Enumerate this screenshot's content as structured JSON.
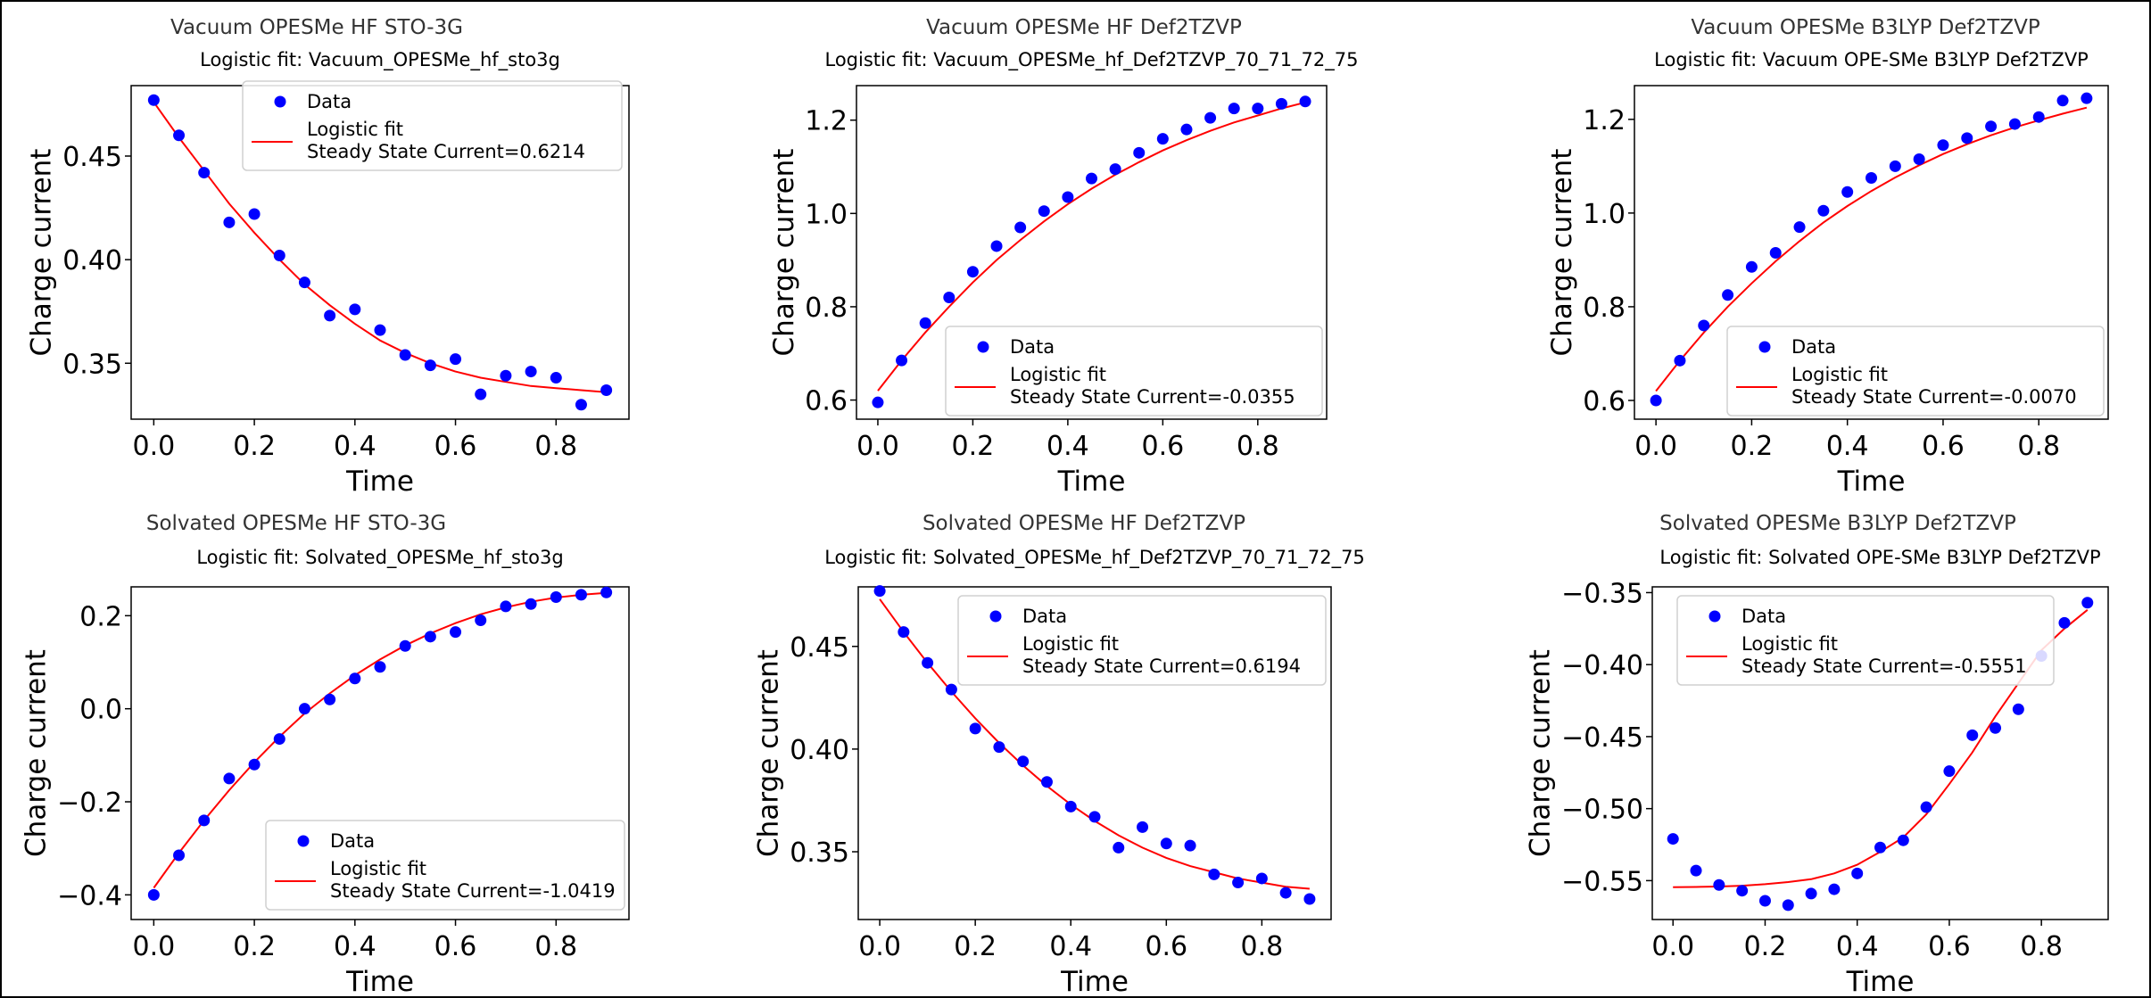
{
  "chart_data": [
    {
      "type": "scatter",
      "suptitle": "Vacuum OPESMe HF STO-3G",
      "title": "Logistic fit: Vacuum_OPESMe_hf_sto3g",
      "xlabel": "Time",
      "ylabel": "Charge current",
      "xlim": [
        -0.045,
        0.945
      ],
      "ylim": [
        0.323,
        0.484
      ],
      "xticks": [
        "0.0",
        "0.2",
        "0.4",
        "0.6",
        "0.8"
      ],
      "yticks": [
        "0.35",
        "0.40",
        "0.45"
      ],
      "x": [
        0,
        0.05,
        0.1,
        0.15,
        0.2,
        0.25,
        0.3,
        0.35,
        0.4,
        0.45,
        0.5,
        0.55,
        0.6,
        0.65,
        0.7,
        0.75,
        0.8,
        0.85,
        0.9
      ],
      "series": [
        {
          "name": "Data",
          "kind": "scatter",
          "color": "#0000ff",
          "values": [
            0.477,
            0.46,
            0.442,
            0.418,
            0.422,
            0.402,
            0.389,
            0.373,
            0.376,
            0.366,
            0.354,
            0.349,
            0.352,
            0.335,
            0.344,
            0.346,
            0.343,
            0.33,
            0.337
          ]
        },
        {
          "name": "Logistic fit\nSteady State Current=0.6214",
          "line1": "Logistic fit",
          "line2": "Steady State Current=0.6214",
          "kind": "line",
          "color": "#ff0000",
          "values": [
            0.476,
            0.459,
            0.443,
            0.427,
            0.413,
            0.4,
            0.388,
            0.378,
            0.369,
            0.361,
            0.355,
            0.35,
            0.346,
            0.343,
            0.341,
            0.339,
            0.338,
            0.337,
            0.336
          ]
        }
      ],
      "legend": "upper-right"
    },
    {
      "type": "scatter",
      "suptitle": "Vacuum OPESMe HF Def2TZVP",
      "title": "Logistic fit: Vacuum_OPESMe_hf_Def2TZVP_70_71_72_75",
      "xlabel": "Time",
      "ylabel": "Charge current",
      "xlim": [
        -0.045,
        0.945
      ],
      "ylim": [
        0.559,
        1.274
      ],
      "xticks": [
        "0.0",
        "0.2",
        "0.4",
        "0.6",
        "0.8"
      ],
      "yticks": [
        "0.6",
        "0.8",
        "1.0",
        "1.2"
      ],
      "x": [
        0,
        0.05,
        0.1,
        0.15,
        0.2,
        0.25,
        0.3,
        0.35,
        0.4,
        0.45,
        0.5,
        0.55,
        0.6,
        0.65,
        0.7,
        0.75,
        0.8,
        0.85,
        0.9
      ],
      "series": [
        {
          "name": "Data",
          "kind": "scatter",
          "color": "#0000ff",
          "values": [
            0.595,
            0.685,
            0.765,
            0.82,
            0.875,
            0.93,
            0.97,
            1.005,
            1.035,
            1.075,
            1.095,
            1.13,
            1.16,
            1.18,
            1.205,
            1.225,
            1.225,
            1.235,
            1.24
          ]
        },
        {
          "name": "Logistic fit\nSteady State Current=-0.0355",
          "line1": "Logistic fit",
          "line2": "Steady State Current=-0.0355",
          "kind": "line",
          "color": "#ff0000",
          "values": [
            0.62,
            0.685,
            0.745,
            0.8,
            0.852,
            0.9,
            0.943,
            0.983,
            1.02,
            1.053,
            1.083,
            1.11,
            1.135,
            1.157,
            1.177,
            1.195,
            1.21,
            1.225,
            1.238
          ]
        }
      ],
      "legend": "lower-right"
    },
    {
      "type": "scatter",
      "suptitle": "Vacuum OPESMe B3LYP Def2TZVP",
      "title": "Logistic fit: Vacuum OPE-SMe B3LYP Def2TZVP",
      "xlabel": "Time",
      "ylabel": "Charge current",
      "xlim": [
        -0.045,
        0.945
      ],
      "ylim": [
        0.56,
        1.272
      ],
      "xticks": [
        "0.0",
        "0.2",
        "0.4",
        "0.6",
        "0.8"
      ],
      "yticks": [
        "0.6",
        "0.8",
        "1.0",
        "1.2"
      ],
      "x": [
        0,
        0.05,
        0.1,
        0.15,
        0.2,
        0.25,
        0.3,
        0.35,
        0.4,
        0.45,
        0.5,
        0.55,
        0.6,
        0.65,
        0.7,
        0.75,
        0.8,
        0.85,
        0.9
      ],
      "series": [
        {
          "name": "Data",
          "kind": "scatter",
          "color": "#0000ff",
          "values": [
            0.6,
            0.685,
            0.76,
            0.825,
            0.885,
            0.915,
            0.97,
            1.005,
            1.045,
            1.075,
            1.1,
            1.115,
            1.145,
            1.16,
            1.185,
            1.19,
            1.205,
            1.24,
            1.245
          ]
        },
        {
          "name": "Logistic fit\nSteady State Current=-0.0070",
          "line1": "Logistic fit",
          "line2": "Steady State Current=-0.0070",
          "kind": "line",
          "color": "#ff0000",
          "values": [
            0.62,
            0.685,
            0.745,
            0.8,
            0.85,
            0.897,
            0.94,
            0.98,
            1.015,
            1.047,
            1.076,
            1.102,
            1.126,
            1.147,
            1.166,
            1.183,
            1.198,
            1.212,
            1.225
          ]
        }
      ],
      "legend": "lower-right"
    },
    {
      "type": "scatter",
      "suptitle": "Solvated OPESMe HF STO-3G",
      "title": "Logistic fit: Solvated_OPESMe_hf_sto3g",
      "xlabel": "Time",
      "ylabel": "Charge current",
      "xlim": [
        -0.045,
        0.945
      ],
      "ylim": [
        -0.453,
        0.262
      ],
      "xticks": [
        "0.0",
        "0.2",
        "0.4",
        "0.6",
        "0.8"
      ],
      "yticks": [
        "−0.4",
        "−0.2",
        "0.0",
        "0.2"
      ],
      "x": [
        0,
        0.05,
        0.1,
        0.15,
        0.2,
        0.25,
        0.3,
        0.35,
        0.4,
        0.45,
        0.5,
        0.55,
        0.6,
        0.65,
        0.7,
        0.75,
        0.8,
        0.85,
        0.9
      ],
      "series": [
        {
          "name": "Data",
          "kind": "scatter",
          "color": "#0000ff",
          "values": [
            -0.4,
            -0.315,
            -0.24,
            -0.15,
            -0.12,
            -0.065,
            0.0,
            0.02,
            0.065,
            0.09,
            0.135,
            0.155,
            0.165,
            0.19,
            0.22,
            0.225,
            0.24,
            0.245,
            0.25
          ]
        },
        {
          "name": "Logistic fit\nSteady State Current=-1.0419",
          "line1": "Logistic fit",
          "line2": "Steady State Current=-1.0419",
          "kind": "line",
          "color": "#ff0000",
          "values": [
            -0.385,
            -0.31,
            -0.24,
            -0.175,
            -0.115,
            -0.06,
            -0.01,
            0.033,
            0.072,
            0.106,
            0.136,
            0.162,
            0.184,
            0.203,
            0.218,
            0.23,
            0.239,
            0.245,
            0.249
          ]
        }
      ],
      "legend": "lower-right"
    },
    {
      "type": "scatter",
      "suptitle": "Solvated OPESMe HF Def2TZVP",
      "title": "Logistic fit: Solvated_OPESMe_hf_Def2TZVP_70_71_72_75",
      "xlabel": "Time",
      "ylabel": "Charge current",
      "xlim": [
        -0.045,
        0.945
      ],
      "ylim": [
        0.317,
        0.479
      ],
      "xticks": [
        "0.0",
        "0.2",
        "0.4",
        "0.6",
        "0.8"
      ],
      "yticks": [
        "0.35",
        "0.40",
        "0.45"
      ],
      "x": [
        0,
        0.05,
        0.1,
        0.15,
        0.2,
        0.25,
        0.3,
        0.35,
        0.4,
        0.45,
        0.5,
        0.55,
        0.6,
        0.65,
        0.7,
        0.75,
        0.8,
        0.85,
        0.9
      ],
      "series": [
        {
          "name": "Data",
          "kind": "scatter",
          "color": "#0000ff",
          "values": [
            0.477,
            0.457,
            0.442,
            0.429,
            0.41,
            0.401,
            0.394,
            0.384,
            0.372,
            0.367,
            0.352,
            0.362,
            0.354,
            0.353,
            0.339,
            0.335,
            0.337,
            0.33,
            0.327
          ]
        },
        {
          "name": "Logistic fit\nSteady State Current=0.6194",
          "line1": "Logistic fit",
          "line2": "Steady State Current=0.6194",
          "kind": "line",
          "color": "#ff0000",
          "values": [
            0.473,
            0.457,
            0.442,
            0.428,
            0.415,
            0.403,
            0.392,
            0.382,
            0.373,
            0.365,
            0.358,
            0.352,
            0.347,
            0.343,
            0.34,
            0.337,
            0.335,
            0.333,
            0.332
          ]
        }
      ],
      "legend": "upper-right"
    },
    {
      "type": "scatter",
      "suptitle": "Solvated OPESMe B3LYP Def2TZVP",
      "title": "Logistic fit: Solvated OPE-SMe B3LYP Def2TZVP",
      "xlabel": "Time",
      "ylabel": "Charge current",
      "xlim": [
        -0.045,
        0.945
      ],
      "ylim": [
        -0.577,
        -0.346
      ],
      "xticks": [
        "0.0",
        "0.2",
        "0.4",
        "0.6",
        "0.8"
      ],
      "yticks": [
        "−0.55",
        "−0.50",
        "−0.45",
        "−0.40",
        "−0.35"
      ],
      "x": [
        0,
        0.05,
        0.1,
        0.15,
        0.2,
        0.25,
        0.3,
        0.35,
        0.4,
        0.45,
        0.5,
        0.55,
        0.6,
        0.65,
        0.7,
        0.75,
        0.8,
        0.85,
        0.9
      ],
      "series": [
        {
          "name": "Data",
          "kind": "scatter",
          "color": "#0000ff",
          "values": [
            -0.521,
            -0.543,
            -0.553,
            -0.557,
            -0.564,
            -0.567,
            -0.559,
            -0.556,
            -0.545,
            -0.527,
            -0.522,
            -0.499,
            -0.474,
            -0.449,
            -0.444,
            -0.431,
            -0.394,
            -0.371,
            -0.357
          ]
        },
        {
          "name": "Logistic fit\nSteady State Current=-0.5551",
          "line1": "Logistic fit",
          "line2": "Steady State Current=-0.5551",
          "kind": "line",
          "color": "#ff0000",
          "values": [
            -0.5545,
            -0.5544,
            -0.5541,
            -0.5535,
            -0.5525,
            -0.551,
            -0.549,
            -0.545,
            -0.539,
            -0.53,
            -0.52,
            -0.504,
            -0.483,
            -0.461,
            -0.436,
            -0.413,
            -0.39,
            -0.375,
            -0.362
          ]
        }
      ],
      "legend": "upper-left"
    }
  ]
}
